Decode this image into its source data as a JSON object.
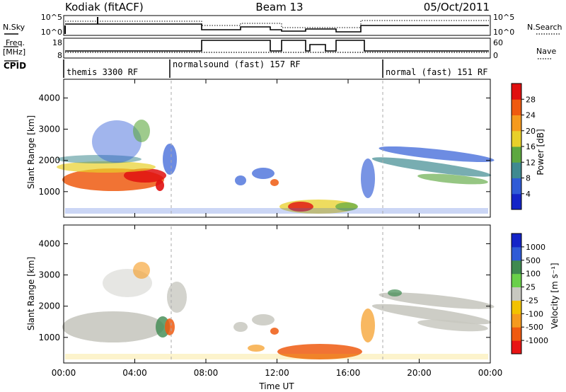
{
  "header": {
    "station": "Kodiak (fitACF)",
    "beam": "Beam 13",
    "date": "05/Oct/2011"
  },
  "status_panel": {
    "left_labels": {
      "nsky": "N.Sky",
      "freq_line1": "Freq.",
      "freq_line2": "[MHz]",
      "cpid": "CPID"
    },
    "right_labels": {
      "nsearch": "N.Search",
      "nave": "Nave"
    },
    "nsky_ticks": [
      "10^5",
      "10^0"
    ],
    "freq_ticks": [
      "18",
      "8"
    ],
    "nsearch_ticks": [
      "10^5",
      "10^0"
    ],
    "nave_ticks": [
      "60",
      "0"
    ],
    "cpid_segments": [
      {
        "label": "themis 3300 RF",
        "start_hour": 0
      },
      {
        "label": "normalsound (fast) 157 RF",
        "start_hour": 6
      },
      {
        "label": "normal (fast) 151 RF",
        "start_hour": 18
      }
    ]
  },
  "chart_data": [
    {
      "type": "heatmap",
      "name": "power-panel",
      "ylabel": "Slant Range [km]",
      "xlabel": "",
      "ylim": [
        180,
        4600
      ],
      "yticks": [
        1000,
        2000,
        3000,
        4000
      ],
      "colorbar": {
        "label": "Power [dB]",
        "ticks": [
          "4",
          "8",
          "12",
          "16",
          "20",
          "24",
          "28"
        ],
        "colors": [
          "#1424c8",
          "#2f5bd6",
          "#3f8a90",
          "#5da840",
          "#e8d02a",
          "#f59a1e",
          "#ef5a10",
          "#e01010"
        ],
        "colors_note": "low to high"
      }
    },
    {
      "type": "heatmap",
      "name": "velocity-panel",
      "ylabel": "Slant Range [km]",
      "xlabel": "Time UT",
      "ylim": [
        180,
        4600
      ],
      "yticks": [
        1000,
        2000,
        3000,
        4000
      ],
      "xticks": [
        "00:00",
        "04:00",
        "08:00",
        "12:00",
        "16:00",
        "20:00",
        "00:00"
      ],
      "colorbar": {
        "label": "Velocity [m s⁻¹]",
        "ticks": [
          "-1000",
          "-500",
          "-100",
          "-25",
          "25",
          "100",
          "500",
          "1000"
        ],
        "colors": [
          "#e81414",
          "#ef5a10",
          "#f59a1e",
          "#f2c200",
          "#c8c8c0",
          "#6ad04a",
          "#3f8a50",
          "#2f5bd6",
          "#1424c8"
        ],
        "colors_note": "negative to positive"
      }
    }
  ]
}
